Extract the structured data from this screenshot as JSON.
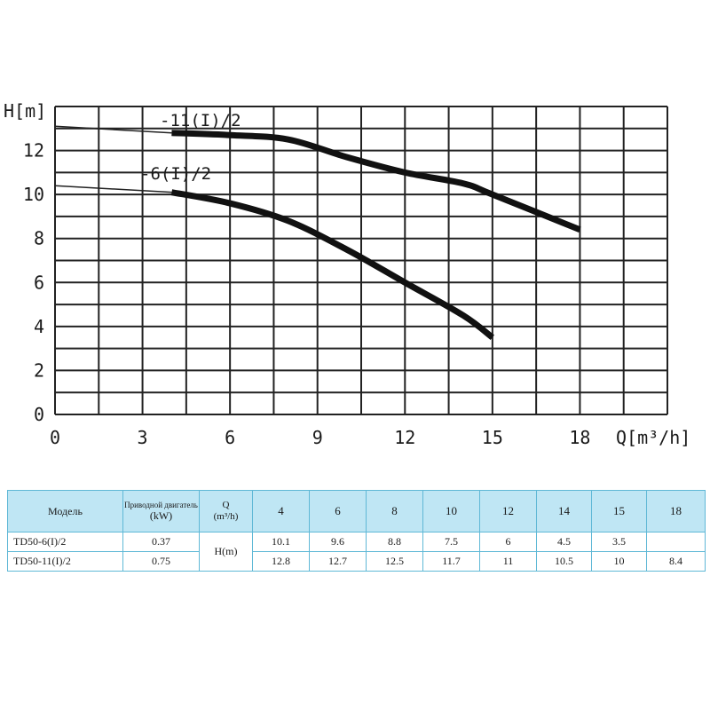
{
  "chart_data": {
    "type": "line",
    "xlabel": "Q[m³/h]",
    "ylabel": "H[m]",
    "xlim": [
      0,
      21
    ],
    "ylim": [
      0,
      14
    ],
    "x_ticks": [
      "0",
      "3",
      "6",
      "9",
      "12",
      "15",
      "18"
    ],
    "y_ticks": [
      "0",
      "2",
      "4",
      "6",
      "8",
      "10",
      "12"
    ],
    "grid": true,
    "series": [
      {
        "name": "-11(I)/2",
        "x": [
          0,
          4,
          6,
          8,
          10,
          12,
          14,
          15,
          18
        ],
        "y": [
          13.1,
          12.8,
          12.7,
          12.5,
          11.7,
          11,
          10.5,
          10,
          8.4
        ]
      },
      {
        "name": "-6(I)/2",
        "x": [
          0,
          4,
          6,
          8,
          10,
          12,
          14,
          15
        ],
        "y": [
          10.4,
          10.1,
          9.6,
          8.8,
          7.5,
          6,
          4.5,
          3.5
        ]
      }
    ]
  },
  "table": {
    "headers": {
      "model": "Модель",
      "motor": "Приводной двигатель",
      "motor_unit": "(kW)",
      "q": "Q",
      "q_unit": "(m³/h)",
      "h_unit": "H(m)",
      "flows": [
        "4",
        "6",
        "8",
        "10",
        "12",
        "14",
        "15",
        "18"
      ]
    },
    "rows": [
      {
        "model": "TD50-6(I)/2",
        "power": "0.37",
        "values": [
          "10.1",
          "9.6",
          "8.8",
          "7.5",
          "6",
          "4.5",
          "3.5",
          ""
        ]
      },
      {
        "model": "TD50-11(I)/2",
        "power": "0.75",
        "values": [
          "12.8",
          "12.7",
          "12.5",
          "11.7",
          "11",
          "10.5",
          "10",
          "8.4"
        ]
      }
    ]
  }
}
